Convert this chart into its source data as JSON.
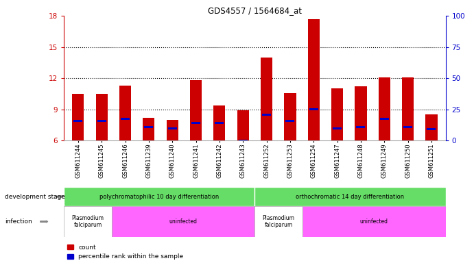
{
  "title": "GDS4557 / 1564684_at",
  "samples": [
    "GSM611244",
    "GSM611245",
    "GSM611246",
    "GSM611239",
    "GSM611240",
    "GSM611241",
    "GSM611242",
    "GSM611243",
    "GSM611252",
    "GSM611253",
    "GSM611254",
    "GSM611247",
    "GSM611248",
    "GSM611249",
    "GSM611250",
    "GSM611251"
  ],
  "count_values": [
    10.5,
    10.5,
    11.3,
    8.2,
    8.0,
    11.8,
    9.4,
    8.9,
    14.0,
    10.6,
    17.7,
    11.0,
    11.2,
    12.1,
    12.1,
    8.5
  ],
  "percentile_values": [
    7.9,
    7.9,
    8.1,
    7.3,
    7.2,
    7.7,
    7.7,
    6.0,
    8.5,
    7.9,
    9.0,
    7.2,
    7.3,
    8.1,
    7.3,
    7.1
  ],
  "bar_bottom": 6,
  "ylim_left": [
    6,
    18
  ],
  "ylim_right": [
    0,
    100
  ],
  "yticks_left": [
    6,
    9,
    12,
    15,
    18
  ],
  "yticks_right": [
    0,
    25,
    50,
    75,
    100
  ],
  "left_axis_color": "#cc0000",
  "right_axis_color": "#0000cc",
  "bar_color": "#cc0000",
  "percentile_color": "#0000cc",
  "background_color": "#ffffff",
  "dev_stage_groups": [
    {
      "label": "polychromatophilic 10 day differentiation",
      "start": 0,
      "end": 8,
      "color": "#66dd66"
    },
    {
      "label": "orthochromatic 14 day differentiation",
      "start": 8,
      "end": 16,
      "color": "#66dd66"
    }
  ],
  "infection_groups": [
    {
      "label": "Plasmodium\nfalciparum",
      "start": 0,
      "end": 2,
      "color": "#ffffff"
    },
    {
      "label": "uninfected",
      "start": 2,
      "end": 8,
      "color": "#ff66ff"
    },
    {
      "label": "Plasmodium\nfalciparum",
      "start": 8,
      "end": 10,
      "color": "#ffffff"
    },
    {
      "label": "uninfected",
      "start": 10,
      "end": 16,
      "color": "#ff66ff"
    }
  ],
  "dev_stage_label": "development stage",
  "infection_label": "infection",
  "legend_count": "count",
  "legend_percentile": "percentile rank within the sample"
}
